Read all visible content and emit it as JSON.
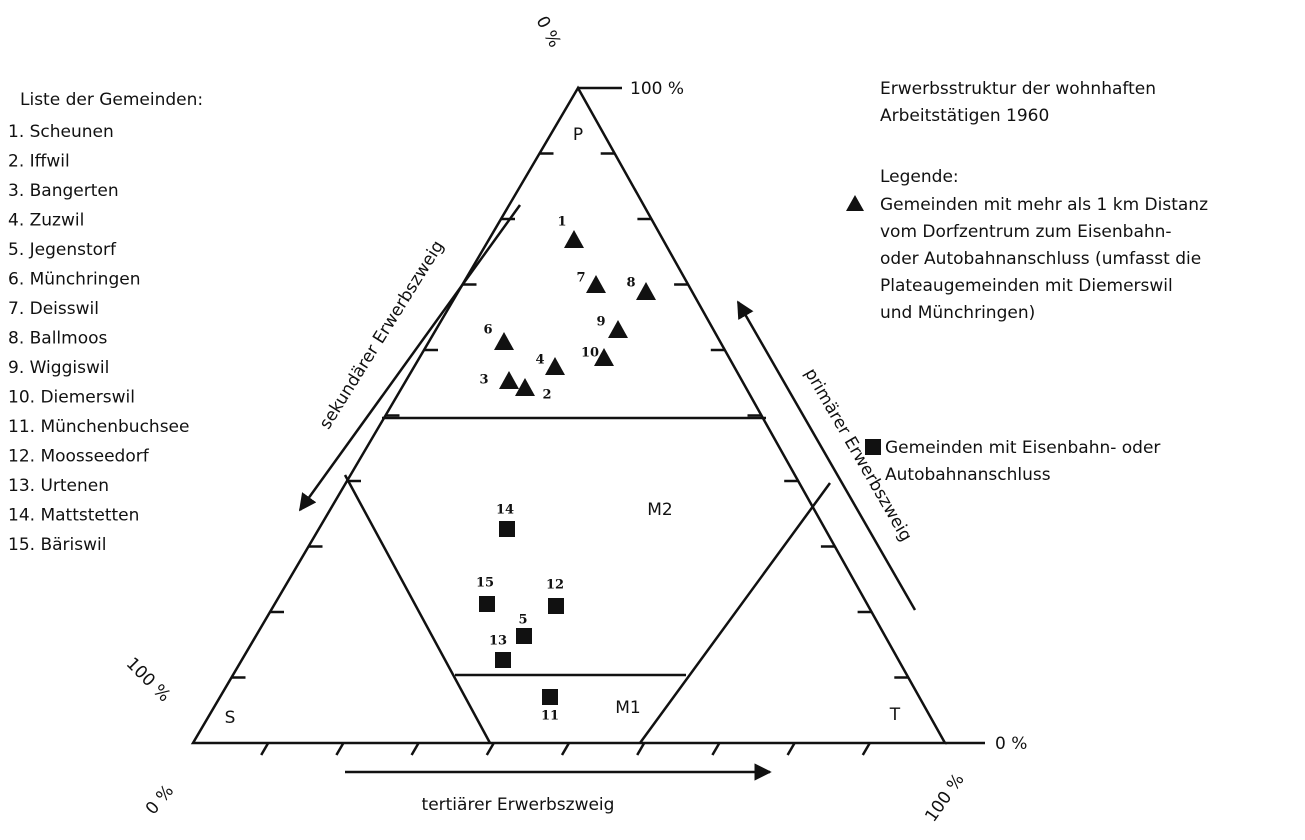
{
  "list": {
    "title": "Liste der Gemeinden:",
    "items": [
      "1. Scheunen",
      "2. Iffwil",
      "3. Bangerten",
      "4. Zuzwil",
      "5. Jegenstorf",
      "6. Münchringen",
      "7. Deisswil",
      "8. Ballmoos",
      "9. Wiggiswil",
      "10. Diemerswil",
      "11. Münchenbuchsee",
      "12. Moosseedorf",
      "13. Urtenen",
      "14. Mattstetten",
      "15. Bäriswil"
    ]
  },
  "scale_labels": {
    "top_zero": "0 %",
    "top_hundred": "100 %",
    "left_hundred": "100 %",
    "left_zero": "0 %",
    "right_zero": "0 %",
    "right_hundred": "100 %"
  },
  "corners": {
    "top": "P",
    "left": "S",
    "right": "T"
  },
  "regions": {
    "upper": "M2",
    "lower": "M1"
  },
  "axes": {
    "secondary": "sekundärer Erwerbszweig",
    "primary": "primärer Erwerbszweig",
    "tertiary": "tertiärer Erwerbszweig"
  },
  "legend": {
    "title": [
      "Erwerbsstruktur der wohnhaften",
      "Arbeitstätigen 1960"
    ],
    "heading": "Legende:",
    "triangle": [
      "Gemeinden mit mehr als 1 km Distanz",
      "vom Dorfzentrum zum Eisenbahn-",
      "oder Autobahnanschluss (umfasst die",
      "Plateaugemeinden mit Diemerswil",
      "und Münchringen)"
    ],
    "square": [
      "Gemeinden mit Eisenbahn- oder",
      "Autobahnanschluss"
    ]
  },
  "points": [
    {
      "label": "1",
      "shape": "triangle"
    },
    {
      "label": "2",
      "shape": "triangle"
    },
    {
      "label": "3",
      "shape": "triangle"
    },
    {
      "label": "4",
      "shape": "triangle"
    },
    {
      "label": "5",
      "shape": "square"
    },
    {
      "label": "6",
      "shape": "triangle"
    },
    {
      "label": "7",
      "shape": "triangle"
    },
    {
      "label": "8",
      "shape": "triangle"
    },
    {
      "label": "9",
      "shape": "triangle"
    },
    {
      "label": "10",
      "shape": "triangle"
    },
    {
      "label": "11",
      "shape": "square"
    },
    {
      "label": "12",
      "shape": "square"
    },
    {
      "label": "13",
      "shape": "square"
    },
    {
      "label": "14",
      "shape": "square"
    },
    {
      "label": "15",
      "shape": "square"
    }
  ]
}
